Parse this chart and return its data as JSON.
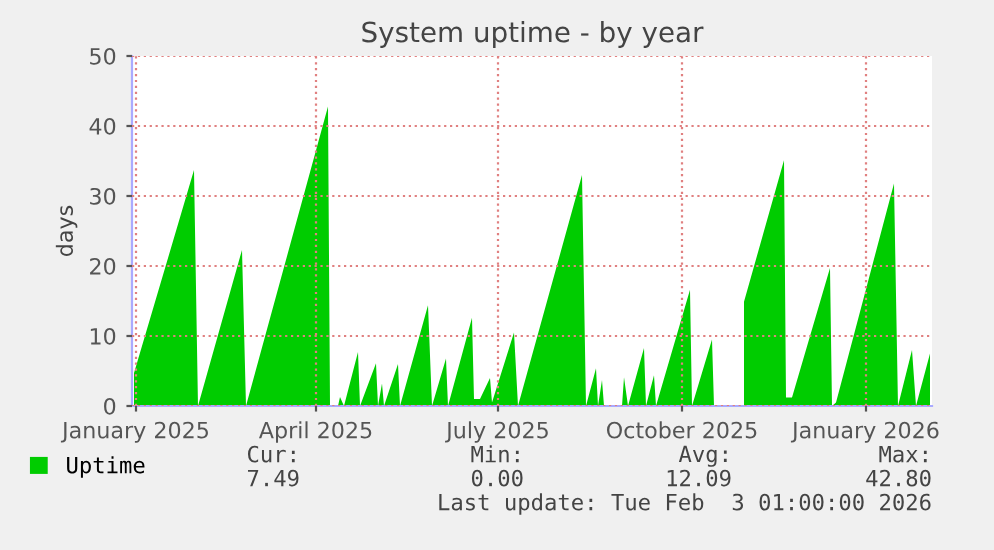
{
  "chart_data": {
    "type": "area",
    "title": "System uptime - by year",
    "ylabel": "days",
    "x": [
      "2024-12-31",
      "2025-01-30",
      "2025-02-01",
      "2025-02-23",
      "2025-02-25",
      "2025-04-07",
      "2025-04-08",
      "2025-04-10",
      "2025-04-12",
      "2025-04-13",
      "2025-04-15",
      "2025-04-22",
      "2025-04-23",
      "2025-05-01",
      "2025-05-02",
      "2025-05-04",
      "2025-05-05",
      "2025-05-12",
      "2025-05-13",
      "2025-05-27",
      "2025-05-29",
      "2025-06-05",
      "2025-06-06",
      "2025-06-18",
      "2025-06-19",
      "2025-06-22",
      "2025-06-27",
      "2025-06-28",
      "2025-07-09",
      "2025-07-11",
      "2025-08-12",
      "2025-08-14",
      "2025-08-19",
      "2025-08-20",
      "2025-08-22",
      "2025-08-23",
      "2025-08-28",
      "2025-09-01",
      "2025-09-02",
      "2025-09-04",
      "2025-09-12",
      "2025-09-13",
      "2025-09-17",
      "2025-09-18",
      "2025-10-05",
      "2025-10-06",
      "2025-10-16",
      "2025-10-17",
      "2025-10-25",
      "2025-11-01",
      "2025-11-21",
      "2025-11-22",
      "2025-11-25",
      "2025-12-14",
      "2025-12-15",
      "2025-12-17",
      "2026-01-15",
      "2026-01-17",
      "2026-01-24",
      "2026-01-26",
      "2026-02-02"
    ],
    "series": [
      {
        "name": "Uptime",
        "color": "#00cc00",
        "values": [
          4.7,
          33.7,
          0,
          22.3,
          0,
          42.8,
          0,
          null,
          0,
          1.3,
          0,
          7.7,
          0,
          6.1,
          0,
          3.2,
          0,
          6.0,
          0,
          14.4,
          0,
          6.8,
          0,
          12.6,
          1,
          1,
          4.0,
          0.5,
          10.5,
          0,
          33.0,
          0,
          5.4,
          0,
          3.7,
          0,
          null,
          0,
          4.1,
          0,
          8.3,
          0,
          4.4,
          0,
          16.6,
          0,
          9.5,
          0,
          null,
          14.9,
          35.1,
          1.2,
          1.2,
          19.7,
          0,
          0.5,
          31.8,
          0,
          8.0,
          0,
          7.49
        ]
      }
    ],
    "xlim": [
      "2024-12-30",
      "2026-02-03"
    ],
    "xticks": [
      {
        "value": "2025-01-01",
        "label": "January 2025"
      },
      {
        "value": "2025-04-01",
        "label": "April 2025"
      },
      {
        "value": "2025-07-01",
        "label": "July 2025"
      },
      {
        "value": "2025-10-01",
        "label": "October 2025"
      },
      {
        "value": "2026-01-01",
        "label": "January 2026"
      }
    ],
    "ylim": [
      0,
      50
    ],
    "yticks": [
      0,
      10,
      20,
      30,
      40,
      50
    ],
    "grid": true,
    "legend": "bottom left",
    "annotations": [
      "Cur:",
      "Min:",
      "Avg:",
      "Max:",
      "7.49",
      "0.00",
      "12.09",
      "42.80",
      "Last update: Tue Feb  3 01:00:00 2026"
    ]
  }
}
